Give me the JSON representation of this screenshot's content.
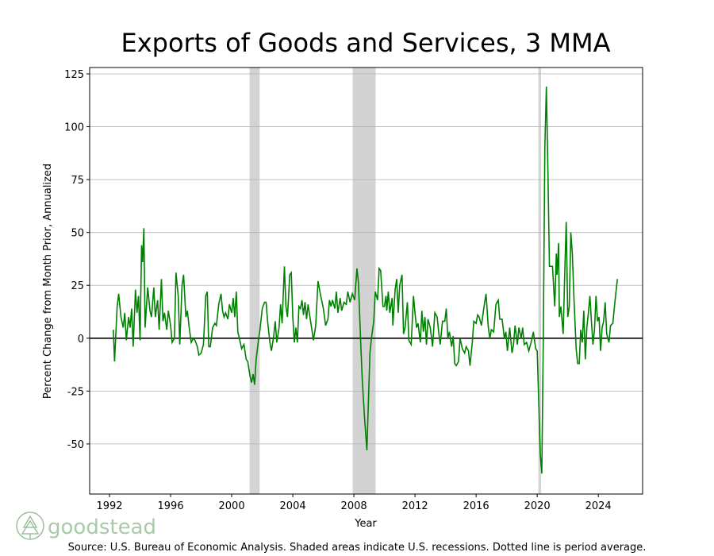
{
  "chart_data": {
    "type": "line",
    "title": "Exports of Goods and Services, 3 MMA",
    "xlabel": "Year",
    "ylabel": "Percent Change from Month Prior, Annualized",
    "source": "Source: U.S. Bureau of Economic Analysis. Shaded areas indicate U.S. recessions. Dotted line is period average.",
    "logo": "goodstead",
    "xlim": [
      1990.7,
      2026.9
    ],
    "ylim": [
      -73.7,
      128
    ],
    "xticks": [
      1992,
      1996,
      2000,
      2004,
      2008,
      2012,
      2016,
      2020,
      2024
    ],
    "yticks": [
      -50,
      -25,
      0,
      25,
      50,
      75,
      100,
      125
    ],
    "grid": true,
    "hline": 0,
    "recessions": [
      [
        2001.17,
        2001.83
      ],
      [
        2007.92,
        2009.42
      ],
      [
        2020.08,
        2020.25
      ]
    ],
    "x": [
      1992.25,
      1992.33,
      1992.5,
      1992.6,
      1992.75,
      1992.9,
      1993.0,
      1993.1,
      1993.25,
      1993.35,
      1993.45,
      1993.55,
      1993.7,
      1993.8,
      1993.9,
      1994.0,
      1994.1,
      1994.17,
      1994.25,
      1994.33,
      1994.5,
      1994.65,
      1994.75,
      1994.9,
      1995.0,
      1995.15,
      1995.25,
      1995.4,
      1995.5,
      1995.6,
      1995.75,
      1995.85,
      1996.0,
      1996.1,
      1996.25,
      1996.35,
      1996.5,
      1996.6,
      1996.75,
      1996.85,
      1997.0,
      1997.1,
      1997.2,
      1997.35,
      1997.5,
      1997.6,
      1997.75,
      1997.85,
      1998.0,
      1998.15,
      1998.3,
      1998.4,
      1998.5,
      1998.6,
      1998.75,
      1998.9,
      1999.0,
      1999.15,
      1999.3,
      1999.4,
      1999.5,
      1999.6,
      1999.75,
      1999.85,
      2000.0,
      2000.1,
      2000.2,
      2000.3,
      2000.4,
      2000.5,
      2000.65,
      2000.8,
      2000.95,
      2001.05,
      2001.2,
      2001.3,
      2001.4,
      2001.5,
      2001.6,
      2001.75,
      2001.85,
      2002.0,
      2002.15,
      2002.25,
      2002.35,
      2002.5,
      2002.6,
      2002.75,
      2002.85,
      2002.95,
      2003.1,
      2003.2,
      2003.3,
      2003.45,
      2003.55,
      2003.65,
      2003.8,
      2003.9,
      2004.0,
      2004.1,
      2004.2,
      2004.3,
      2004.4,
      2004.5,
      2004.6,
      2004.7,
      2004.8,
      2004.9,
      2005.0,
      2005.1,
      2005.25,
      2005.35,
      2005.5,
      2005.65,
      2005.8,
      2006.0,
      2006.15,
      2006.3,
      2006.4,
      2006.5,
      2006.6,
      2006.75,
      2006.85,
      2006.95,
      2007.1,
      2007.2,
      2007.35,
      2007.5,
      2007.6,
      2007.75,
      2007.9,
      2008.05,
      2008.2,
      2008.3,
      2008.45,
      2008.55,
      2008.7,
      2008.85,
      2008.95,
      2009.05,
      2009.15,
      2009.3,
      2009.4,
      2009.55,
      2009.65,
      2009.75,
      2009.9,
      2010.0,
      2010.1,
      2010.15,
      2010.25,
      2010.35,
      2010.5,
      2010.55,
      2010.7,
      2010.8,
      2010.9,
      2011.0,
      2011.15,
      2011.25,
      2011.35,
      2011.5,
      2011.6,
      2011.75,
      2011.9,
      2012.0,
      2012.1,
      2012.2,
      2012.35,
      2012.45,
      2012.55,
      2012.65,
      2012.75,
      2012.85,
      2013.0,
      2013.15,
      2013.3,
      2013.45,
      2013.55,
      2013.65,
      2013.8,
      2013.95,
      2014.05,
      2014.15,
      2014.25,
      2014.4,
      2014.5,
      2014.6,
      2014.7,
      2014.85,
      2014.95,
      2015.1,
      2015.25,
      2015.35,
      2015.5,
      2015.6,
      2015.75,
      2015.85,
      2016.0,
      2016.1,
      2016.2,
      2016.35,
      2016.5,
      2016.65,
      2016.8,
      2016.9,
      2017.0,
      2017.15,
      2017.3,
      2017.45,
      2017.55,
      2017.7,
      2017.85,
      2017.95,
      2018.05,
      2018.2,
      2018.35,
      2018.45,
      2018.55,
      2018.7,
      2018.8,
      2018.95,
      2019.05,
      2019.15,
      2019.3,
      2019.45,
      2019.6,
      2019.75,
      2019.9,
      2020.0,
      2020.1,
      2020.2,
      2020.3,
      2020.4,
      2020.5,
      2020.6,
      2020.7,
      2020.8,
      2020.9,
      2021.0,
      2021.15,
      2021.25,
      2021.3,
      2021.4,
      2021.45,
      2021.55,
      2021.7,
      2021.8,
      2021.9,
      2022.0,
      2022.1,
      2022.2,
      2022.3,
      2022.4,
      2022.55,
      2022.65,
      2022.75,
      2022.85,
      2022.95,
      2023.05,
      2023.15,
      2023.25,
      2023.35,
      2023.45,
      2023.55,
      2023.65,
      2023.75,
      2023.85,
      2023.95,
      2024.05,
      2024.15,
      2024.25,
      2024.35,
      2024.45,
      2024.55,
      2024.7,
      2024.8,
      2024.95,
      2025.1,
      2025.25
    ],
    "series": [
      {
        "name": "Exports",
        "color": "#008000",
        "values": [
          4,
          -11,
          15,
          21,
          10,
          5,
          12,
          -1,
          10,
          5,
          14,
          -4,
          23,
          12,
          20,
          -1,
          44,
          36,
          52,
          5,
          24,
          13,
          10,
          24,
          10,
          18,
          4,
          28,
          8,
          12,
          4,
          13,
          6,
          -2,
          0,
          31,
          20,
          -3,
          25,
          30,
          10,
          13,
          6,
          -2,
          0,
          -1,
          -4,
          -8,
          -7,
          -3,
          20,
          22,
          -4,
          -4,
          5,
          7,
          6,
          16,
          21,
          13,
          10,
          12,
          9,
          16,
          12,
          19,
          10,
          22,
          3,
          0,
          -5,
          -3,
          -10,
          -11,
          -18,
          -21,
          -17,
          -22,
          -10,
          -1,
          4,
          14,
          17,
          17,
          8,
          -2,
          -6,
          1,
          8,
          -2,
          5,
          16,
          7,
          34,
          15,
          10,
          30,
          31,
          10,
          -2,
          5,
          -2,
          15,
          14,
          18,
          11,
          17,
          9,
          16,
          11,
          4,
          -1,
          6,
          27,
          21,
          14,
          6,
          9,
          18,
          15,
          18,
          14,
          22,
          12,
          19,
          13,
          17,
          16,
          22,
          17,
          21,
          18,
          33,
          26,
          -3,
          -20,
          -38,
          -53,
          -30,
          -7,
          0,
          8,
          22,
          18,
          33,
          32,
          15,
          15,
          20,
          13,
          22,
          12,
          19,
          6,
          23,
          28,
          12,
          25,
          30,
          2,
          5,
          17,
          -1,
          -3,
          20,
          12,
          5,
          7,
          -2,
          13,
          3,
          10,
          -3,
          9,
          5,
          -4,
          12,
          10,
          3,
          -3,
          8,
          8,
          14,
          0,
          3,
          -4,
          1,
          -12,
          -13,
          -11,
          0,
          -5,
          -7,
          -4,
          -6,
          -13,
          -2,
          8,
          7,
          11,
          10,
          6,
          14,
          21,
          5,
          0,
          4,
          3,
          16,
          18,
          9,
          9,
          0,
          3,
          -6,
          5,
          -7,
          -3,
          6,
          -3,
          5,
          0,
          5,
          -3,
          -2,
          -6,
          -2,
          3,
          -5,
          -6,
          -30,
          -55,
          -64,
          0,
          90,
          119,
          80,
          34,
          34,
          34,
          15,
          40,
          30,
          45,
          10,
          15,
          2,
          30,
          55,
          10,
          15,
          50,
          40,
          20,
          -5,
          -12,
          -12,
          4,
          -2,
          13,
          -10,
          5,
          12,
          20,
          8,
          -3,
          4,
          20,
          8,
          10,
          -6,
          5,
          8,
          17,
          2,
          -2,
          6,
          7,
          18,
          28
        ]
      }
    ]
  }
}
